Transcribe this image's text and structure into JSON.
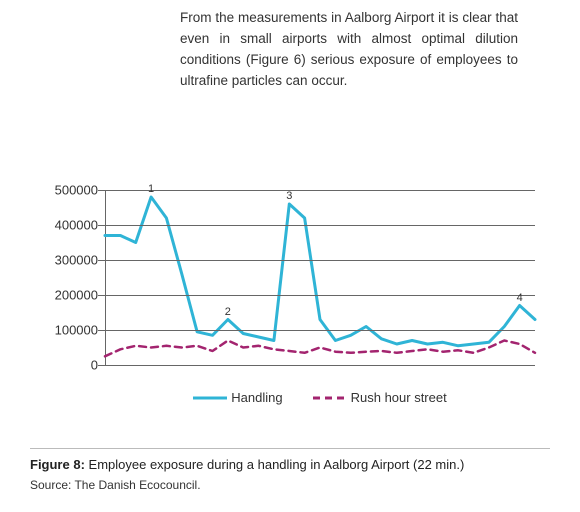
{
  "body_paragraph": "From the measurements in Aalborg Airport it is clear that even in small airports with almost optimal dilution conditions (Figure 6) serious exposure of employees to ultrafine particles can occur.",
  "chart": {
    "type": "line",
    "ylim": [
      0,
      500000
    ],
    "ytick_step": 100000,
    "ytick_labels": [
      "0",
      "100000",
      "200000",
      "300000",
      "400000",
      "500000"
    ],
    "label_fontsize": 13,
    "grid_color": "#666666",
    "background_color": "#ffffff",
    "series": [
      {
        "name": "Handling",
        "label": "Handling",
        "color": "#2fb4d6",
        "line_width": 3,
        "dash": "none",
        "values": [
          370000,
          370000,
          350000,
          480000,
          420000,
          260000,
          95000,
          85000,
          130000,
          90000,
          80000,
          70000,
          460000,
          420000,
          130000,
          70000,
          85000,
          110000,
          75000,
          60000,
          70000,
          60000,
          65000,
          55000,
          60000,
          65000,
          110000,
          170000,
          130000
        ]
      },
      {
        "name": "RushHourStreet",
        "label": "Rush hour street",
        "color": "#a3246f",
        "line_width": 2.5,
        "dash": "7,5",
        "values": [
          25000,
          45000,
          55000,
          50000,
          55000,
          50000,
          55000,
          40000,
          70000,
          50000,
          55000,
          45000,
          40000,
          35000,
          50000,
          38000,
          35000,
          38000,
          40000,
          35000,
          40000,
          45000,
          38000,
          42000,
          35000,
          50000,
          70000,
          60000,
          35000
        ]
      }
    ],
    "point_annotations": [
      {
        "index": 3,
        "text": "1",
        "series": 0
      },
      {
        "index": 8,
        "text": "2",
        "series": 0
      },
      {
        "index": 12,
        "text": "3",
        "series": 0
      },
      {
        "index": 27,
        "text": "4",
        "series": 0
      }
    ],
    "legend_swatches": {
      "solid_width": 34,
      "dash_width": 34
    }
  },
  "caption": {
    "label_prefix": "Figure 8:",
    "title_rest": " Employee exposure during a handling in Aalborg Airport (22 min.)",
    "source": "Source: The Danish Ecocouncil."
  }
}
